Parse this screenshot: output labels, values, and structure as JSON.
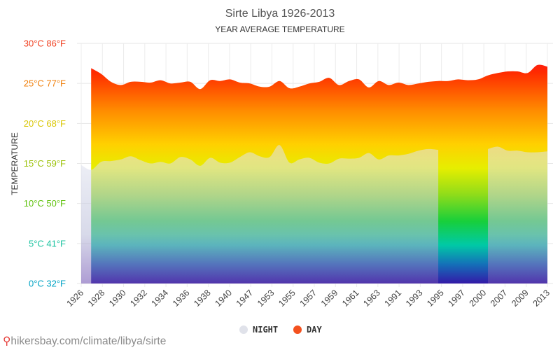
{
  "chart_data": {
    "type": "area",
    "title": "Sirte Libya 1926-2013",
    "subtitle": "YEAR AVERAGE TEMPERATURE",
    "ylabel": "TEMPERATURE",
    "xlabel": "",
    "ylim": [
      0,
      30
    ],
    "y_ticks": [
      {
        "value": 0,
        "label": "0°C 32°F",
        "color": "#00a3c4"
      },
      {
        "value": 5,
        "label": "5°C 41°F",
        "color": "#1cc3a0"
      },
      {
        "value": 10,
        "label": "10°C 50°F",
        "color": "#5ec10b"
      },
      {
        "value": 15,
        "label": "15°C 59°F",
        "color": "#9cc20a"
      },
      {
        "value": 20,
        "label": "20°C 68°F",
        "color": "#d9c600"
      },
      {
        "value": 25,
        "label": "25°C 77°F",
        "color": "#f07f0a"
      },
      {
        "value": 30,
        "label": "30°C 86°F",
        "color": "#f03e1e"
      }
    ],
    "x_tick_labels": [
      "1926",
      "1928",
      "1930",
      "1932",
      "1934",
      "1936",
      "1938",
      "1940",
      "1947",
      "1953",
      "1955",
      "1957",
      "1959",
      "1961",
      "1963",
      "1991",
      "1993",
      "1995",
      "1997",
      "2000",
      "2007",
      "2009",
      "2013"
    ],
    "series": [
      {
        "name": "NIGHT",
        "color": "#d8dbe8",
        "values": [
          14.8,
          14.2,
          15.2,
          15.3,
          15.5,
          15.9,
          15.4,
          15.0,
          15.2,
          15.0,
          15.8,
          15.5,
          14.7,
          15.7,
          15.1,
          15.1,
          15.8,
          16.4,
          15.9,
          15.8,
          17.3,
          15.1,
          15.5,
          15.7,
          15.1,
          15.0,
          15.6,
          15.6,
          15.7,
          16.3,
          15.5,
          16.0,
          16.0,
          16.2,
          16.6,
          16.8,
          16.7,
          null,
          null,
          null,
          null,
          16.8,
          17.1,
          16.6,
          16.6,
          16.4,
          16.4,
          16.5
        ]
      },
      {
        "name": "DAY",
        "color": "#f4511e",
        "values": [
          null,
          26.9,
          26.2,
          25.2,
          24.8,
          25.2,
          25.2,
          25.1,
          25.4,
          25.0,
          25.1,
          25.2,
          24.3,
          25.4,
          25.3,
          25.5,
          25.1,
          25.0,
          24.6,
          24.6,
          25.3,
          24.4,
          24.6,
          25.0,
          25.2,
          25.7,
          24.8,
          25.3,
          25.5,
          24.5,
          25.3,
          24.8,
          25.1,
          24.8,
          25.0,
          25.2,
          25.3,
          25.3,
          25.5,
          25.4,
          25.5,
          26.0,
          26.3,
          26.5,
          26.5,
          26.3,
          27.3,
          27.1
        ]
      }
    ],
    "gap_range": [
      37,
      40
    ],
    "legend_position": "bottom-center",
    "grid": true
  },
  "watermark": {
    "icon": "map-pin-icon",
    "text": "hikersbay.com/climate/libya/sirte"
  }
}
